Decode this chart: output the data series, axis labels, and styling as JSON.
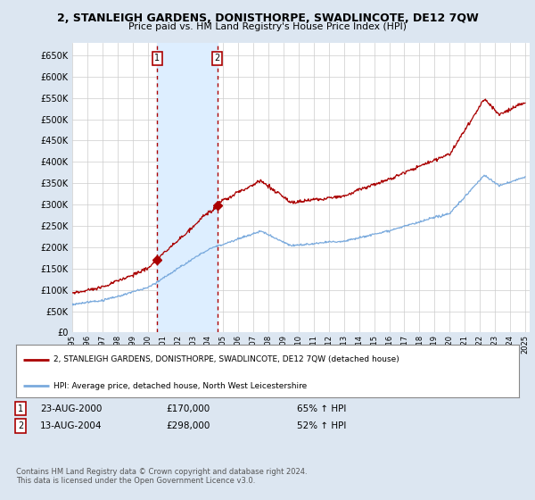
{
  "title": "2, STANLEIGH GARDENS, DONISTHORPE, SWADLINCOTE, DE12 7QW",
  "subtitle": "Price paid vs. HM Land Registry's House Price Index (HPI)",
  "legend_line1": "2, STANLEIGH GARDENS, DONISTHORPE, SWADLINCOTE, DE12 7QW (detached house)",
  "legend_line2": "HPI: Average price, detached house, North West Leicestershire",
  "transaction1_date": "23-AUG-2000",
  "transaction1_price": "£170,000",
  "transaction1_hpi": "65% ↑ HPI",
  "transaction2_date": "13-AUG-2004",
  "transaction2_price": "£298,000",
  "transaction2_hpi": "52% ↑ HPI",
  "footer": "Contains HM Land Registry data © Crown copyright and database right 2024.\nThis data is licensed under the Open Government Licence v3.0.",
  "hpi_color": "#7aaadd",
  "price_color": "#aa0000",
  "shade_color": "#ddeeff",
  "background_color": "#dce6f1",
  "plot_bg_color": "#ffffff",
  "ylim": [
    0,
    680000
  ],
  "yticks": [
    0,
    50000,
    100000,
    150000,
    200000,
    250000,
    300000,
    350000,
    400000,
    450000,
    500000,
    550000,
    600000,
    650000
  ],
  "marker1_year": 2000.64,
  "marker1_value": 170000,
  "marker2_year": 2004.62,
  "marker2_value": 298000
}
